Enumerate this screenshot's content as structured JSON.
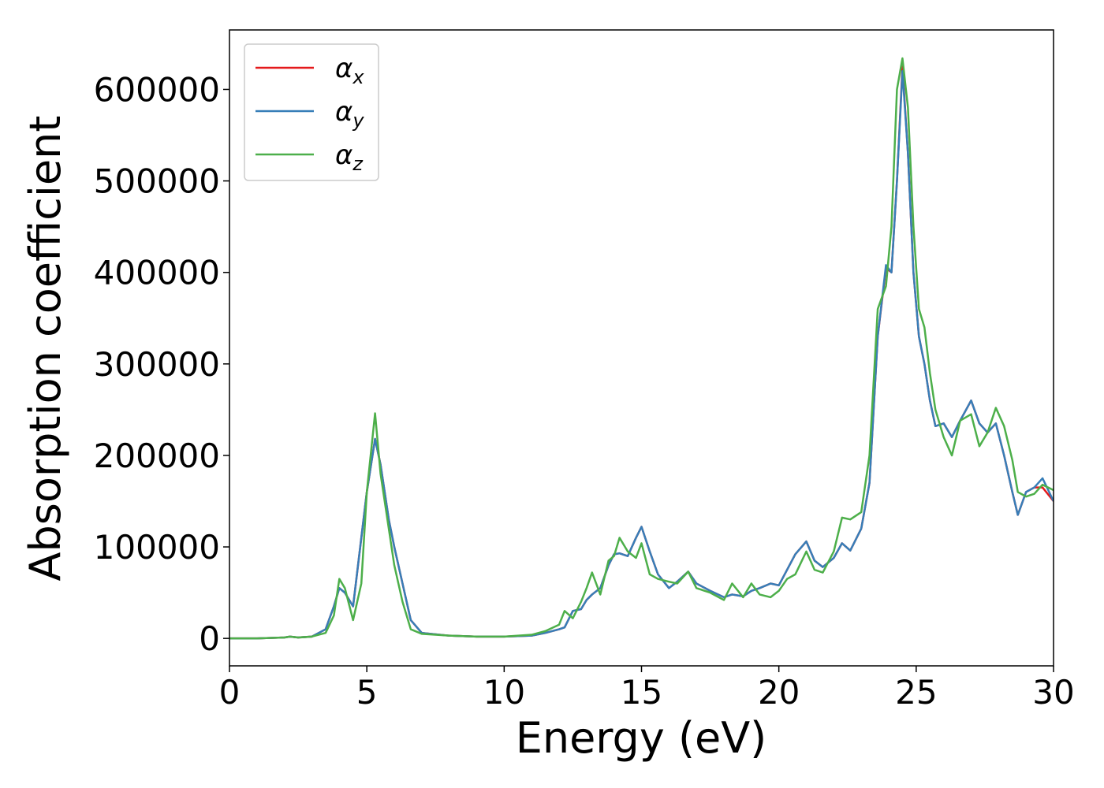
{
  "chart_data": {
    "type": "line",
    "xlabel": "Energy (eV)",
    "ylabel": "Absorption coefficient",
    "x": [
      0,
      1,
      2,
      2.2,
      2.5,
      3,
      3.5,
      3.8,
      4.0,
      4.2,
      4.5,
      4.8,
      5.0,
      5.3,
      5.5,
      5.8,
      6.0,
      6.3,
      6.6,
      7,
      8,
      9,
      10,
      11,
      11.5,
      12,
      12.2,
      12.5,
      12.8,
      13,
      13.2,
      13.5,
      13.8,
      14,
      14.2,
      14.5,
      14.8,
      15,
      15.3,
      15.6,
      16,
      16.3,
      16.7,
      17,
      17.5,
      18,
      18.3,
      18.7,
      19,
      19.3,
      19.7,
      20,
      20.3,
      20.6,
      21,
      21.3,
      21.6,
      22,
      22.3,
      22.6,
      23,
      23.3,
      23.6,
      23.9,
      24.1,
      24.3,
      24.5,
      24.7,
      24.9,
      25.1,
      25.3,
      25.5,
      25.7,
      26,
      26.3,
      26.6,
      27,
      27.3,
      27.6,
      27.9,
      28.2,
      28.5,
      28.7,
      29,
      29.3,
      29.6,
      30
    ],
    "series": [
      {
        "name": "αx",
        "color": "#e41a1c",
        "values": [
          0,
          0,
          1000,
          2000,
          1000,
          2000,
          10000,
          35000,
          55000,
          50000,
          35000,
          110000,
          160000,
          218000,
          190000,
          130000,
          100000,
          60000,
          20000,
          6000,
          3000,
          2000,
          2000,
          3000,
          6000,
          10000,
          12000,
          30000,
          32000,
          42000,
          48000,
          55000,
          80000,
          92000,
          93000,
          90000,
          110000,
          122000,
          95000,
          70000,
          55000,
          62000,
          73000,
          60000,
          52000,
          45000,
          48000,
          46000,
          52000,
          55000,
          60000,
          58000,
          75000,
          92000,
          106000,
          85000,
          78000,
          88000,
          104000,
          96000,
          120000,
          170000,
          330000,
          405000,
          400000,
          500000,
          625000,
          530000,
          400000,
          330000,
          300000,
          260000,
          232000,
          235000,
          220000,
          238000,
          260000,
          235000,
          225000,
          235000,
          200000,
          160000,
          135000,
          160000,
          165000,
          165000,
          150000
        ]
      },
      {
        "name": "αy",
        "color": "#377eb8",
        "values": [
          0,
          0,
          1000,
          2000,
          1000,
          2000,
          10000,
          35000,
          55000,
          50000,
          35000,
          110000,
          160000,
          218000,
          190000,
          130000,
          100000,
          60000,
          20000,
          6000,
          3000,
          2000,
          2000,
          3000,
          6000,
          10000,
          12000,
          30000,
          32000,
          42000,
          48000,
          55000,
          80000,
          92000,
          93000,
          90000,
          110000,
          122000,
          95000,
          70000,
          55000,
          62000,
          73000,
          60000,
          52000,
          45000,
          48000,
          46000,
          52000,
          55000,
          60000,
          58000,
          75000,
          92000,
          106000,
          85000,
          78000,
          88000,
          104000,
          96000,
          120000,
          170000,
          330000,
          408000,
          400000,
          500000,
          620000,
          530000,
          400000,
          330000,
          300000,
          260000,
          232000,
          235000,
          220000,
          238000,
          260000,
          235000,
          225000,
          235000,
          200000,
          160000,
          135000,
          160000,
          165000,
          175000,
          150000
        ]
      },
      {
        "name": "αz",
        "color": "#4daf4a",
        "values": [
          0,
          0,
          1000,
          2000,
          1000,
          2000,
          6000,
          25000,
          65000,
          55000,
          20000,
          60000,
          160000,
          246000,
          180000,
          120000,
          80000,
          40000,
          10000,
          5000,
          3000,
          2000,
          2000,
          4000,
          8000,
          15000,
          30000,
          22000,
          40000,
          55000,
          72000,
          48000,
          85000,
          90000,
          110000,
          95000,
          88000,
          104000,
          70000,
          65000,
          62000,
          60000,
          73000,
          55000,
          50000,
          42000,
          60000,
          45000,
          60000,
          48000,
          45000,
          52000,
          65000,
          70000,
          95000,
          75000,
          72000,
          95000,
          132000,
          130000,
          138000,
          200000,
          360000,
          385000,
          450000,
          600000,
          634000,
          580000,
          450000,
          360000,
          340000,
          290000,
          250000,
          220000,
          200000,
          238000,
          245000,
          210000,
          225000,
          252000,
          232000,
          195000,
          160000,
          155000,
          158000,
          168000,
          162000
        ]
      }
    ],
    "xlim": [
      0,
      30
    ],
    "xticks": [
      0,
      5,
      10,
      15,
      20,
      25,
      30
    ],
    "ylim": [
      -30000,
      665000
    ],
    "yticks": [
      0,
      100000,
      200000,
      300000,
      400000,
      500000,
      600000
    ],
    "legend": "upper left"
  }
}
